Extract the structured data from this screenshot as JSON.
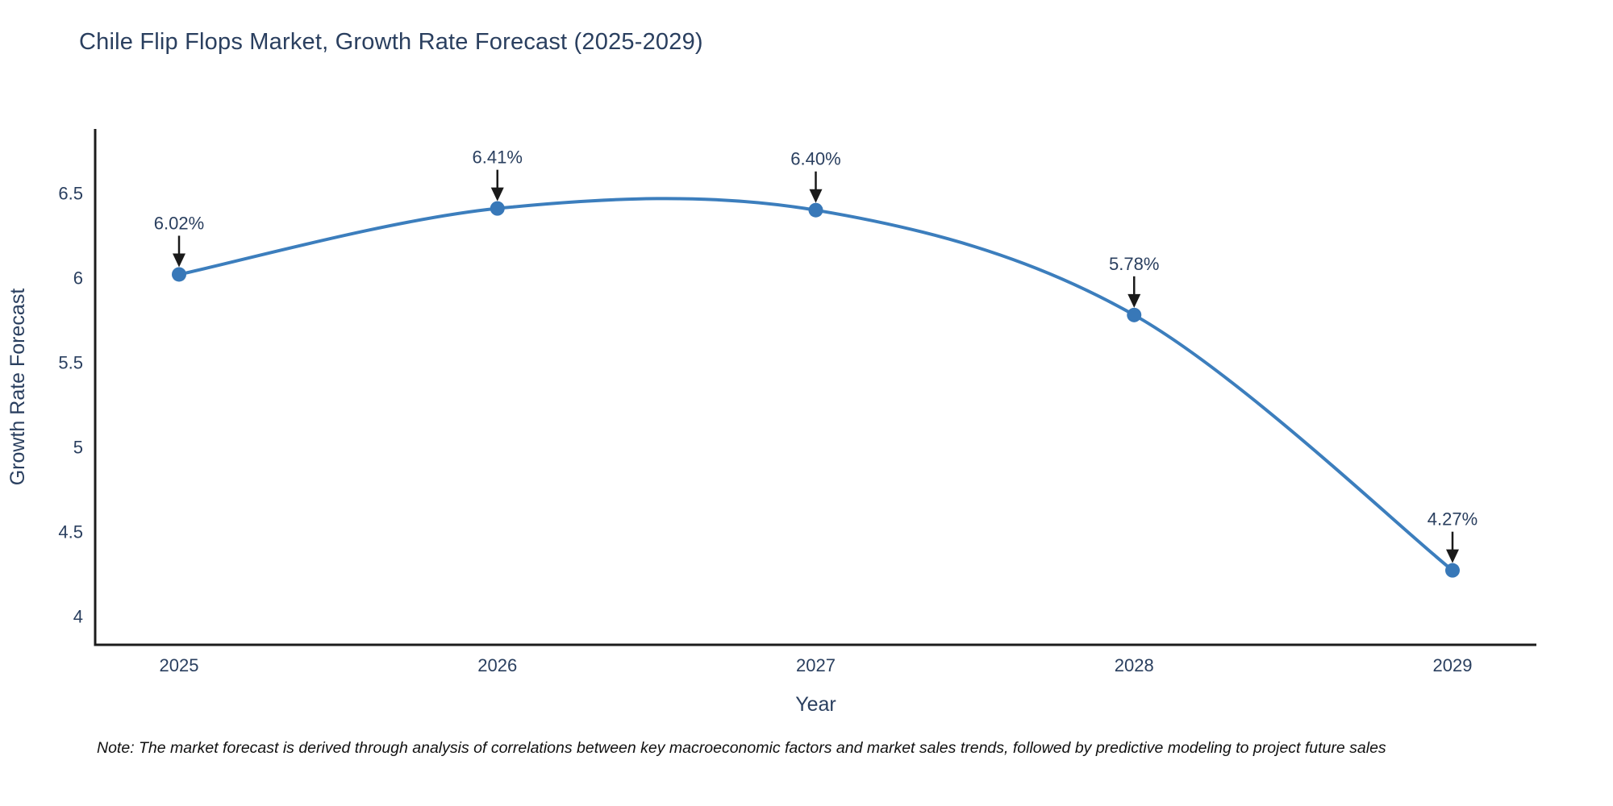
{
  "page": {
    "title": "Chile Flip Flops Market, Growth Rate Forecast (2025-2029)",
    "note": "Note: The market forecast is derived through analysis of correlations between key macroeconomic factors and market sales trends, followed by predictive modeling to project future sales"
  },
  "chart_data": {
    "type": "line",
    "title": "Chile Flip Flops Market, Growth Rate Forecast (2025-2029)",
    "categories": [
      "2025",
      "2026",
      "2027",
      "2028",
      "2029"
    ],
    "values": [
      6.02,
      6.41,
      6.4,
      5.78,
      4.27
    ],
    "point_labels": [
      "6.02%",
      "6.41%",
      "6.40%",
      "5.78%",
      "4.27%"
    ],
    "xlabel": "Year",
    "ylabel": "Growth Rate Forecast",
    "y_ticks": [
      4,
      4.5,
      5,
      5.5,
      6,
      6.5
    ],
    "y_tick_labels": [
      "4",
      "4.5",
      "5",
      "5.5",
      "6",
      "6.5"
    ],
    "ylim": [
      3.83,
      6.88
    ],
    "line_shape": "spline",
    "grid": false,
    "legend": false,
    "annotations": "arrow-down-to-each-point",
    "colors": {
      "line": "#3c7ebd",
      "marker": "#3878b8",
      "axis_line": "#1c1c1c",
      "axis_text": "#2a3f5f",
      "annotation_text": "#2a3f5f",
      "annotation_arrow": "#1a1a1a",
      "background": "#ffffff"
    }
  }
}
